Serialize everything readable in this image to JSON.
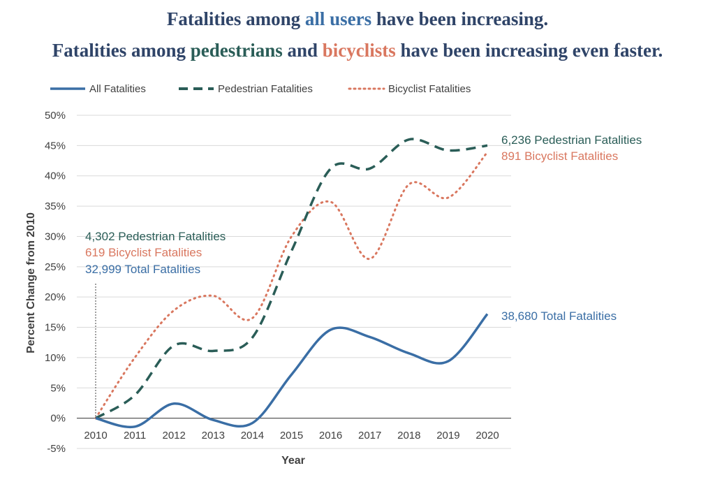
{
  "colors": {
    "title": "#2f4468",
    "all": "#3a6ea5",
    "pedestrian": "#2a5d57",
    "bicyclist": "#d9775f",
    "grid": "#d9d9d9",
    "axis": "#595959"
  },
  "title": {
    "line1": [
      "Fatalities among ",
      "all users",
      " have been increasing."
    ],
    "line2": [
      "Fatalities among ",
      "pedestrians",
      " and ",
      "bicyclists",
      " have been increasing even faster."
    ]
  },
  "chart_data": {
    "type": "line",
    "x": [
      2010,
      2011,
      2012,
      2013,
      2014,
      2015,
      2016,
      2017,
      2018,
      2019,
      2020
    ],
    "xlabel": "Year",
    "ylabel": "Percent Change from 2010",
    "ylim": [
      -5,
      50
    ],
    "yticks": [
      -5,
      0,
      5,
      10,
      15,
      20,
      25,
      30,
      35,
      40,
      45,
      50
    ],
    "ytick_labels": [
      "-5%",
      "0%",
      "5%",
      "10%",
      "15%",
      "20%",
      "25%",
      "30%",
      "35%",
      "40%",
      "45%",
      "50%"
    ],
    "grid": true,
    "legend_position": "top",
    "series": [
      {
        "name": "All Fatalities",
        "style": "solid",
        "values": [
          0,
          -1.4,
          2.4,
          -0.3,
          -0.8,
          7.2,
          14.6,
          13.4,
          10.7,
          9.4,
          17.2
        ]
      },
      {
        "name": "Pedestrian Fatalities",
        "style": "dashed",
        "values": [
          0,
          3.8,
          12.0,
          11.1,
          13.3,
          27.6,
          41.2,
          41.2,
          46.0,
          44.2,
          45.0
        ]
      },
      {
        "name": "Bicyclist Fatalities",
        "style": "dotted",
        "values": [
          0,
          10.0,
          17.8,
          20.2,
          16.5,
          30.0,
          35.7,
          26.3,
          38.6,
          36.4,
          43.9
        ]
      }
    ],
    "annotations": {
      "start": [
        {
          "text": "4,302 Pedestrian Fatalities",
          "series": "pedestrian"
        },
        {
          "text": "619 Bicyclist Fatalities",
          "series": "bicyclist"
        },
        {
          "text": "32,999 Total Fatalities",
          "series": "all"
        }
      ],
      "end": [
        {
          "text": "6,236 Pedestrian Fatalities",
          "series": "pedestrian"
        },
        {
          "text": "891 Bicyclist Fatalities",
          "series": "bicyclist"
        },
        {
          "text": "38,680 Total Fatalities",
          "series": "all"
        }
      ]
    }
  }
}
